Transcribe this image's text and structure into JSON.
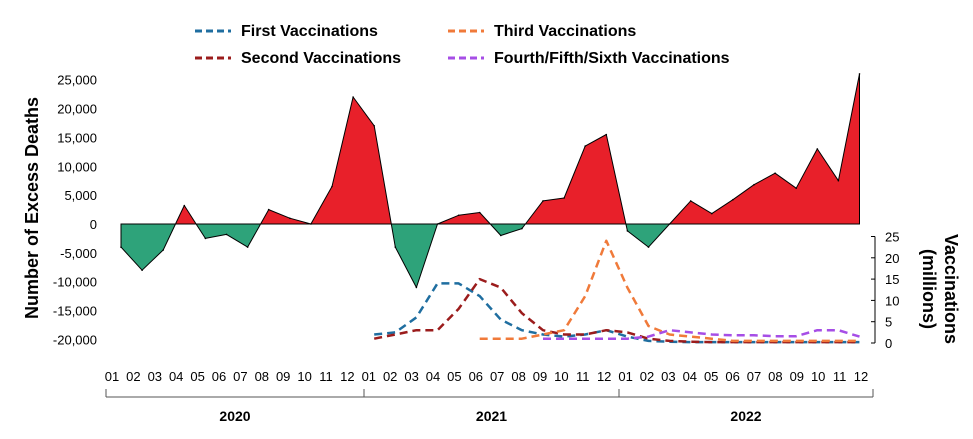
{
  "chart_data": {
    "type": "area",
    "ylabel": "Number of Excess Deaths",
    "ylabel2": "Vaccinations (millions)",
    "ylim": [
      -20000,
      25000
    ],
    "y2lim": [
      0,
      25
    ],
    "yticks": [
      "25,000",
      "20,000",
      "15,000",
      "10,000",
      "5,000",
      "0",
      "-5,000",
      "-10,000",
      "-15,000",
      "-20,000"
    ],
    "y2ticks": [
      "25",
      "20",
      "15",
      "10",
      "5",
      "0"
    ],
    "months": [
      "01",
      "02",
      "03",
      "04",
      "05",
      "06",
      "07",
      "08",
      "09",
      "10",
      "11",
      "12"
    ],
    "years": [
      "2020",
      "2021",
      "2022"
    ],
    "colors": {
      "positive": "#e8202a",
      "negative": "#2ea37a",
      "first": "#1f6ea0",
      "second": "#9b1c1c",
      "third": "#f07a3a",
      "fourth": "#a64ee6"
    },
    "excess_deaths": [
      -4000,
      -8000,
      -4500,
      3200,
      -2500,
      -1800,
      -4000,
      2500,
      1000,
      0,
      6500,
      22000,
      17000,
      -4000,
      -11000,
      0,
      1500,
      2000,
      -2000,
      -800,
      4000,
      4500,
      13500,
      15500,
      -1200,
      -4000,
      0,
      4000,
      1800,
      4200,
      6800,
      8800,
      6200,
      13000,
      7500,
      26000
    ],
    "series": [
      {
        "name": "First Vaccinations",
        "color": "#1f6ea0",
        "start": 12,
        "values": [
          2,
          2.5,
          6,
          14,
          14,
          11,
          5.5,
          3,
          2,
          1.5,
          2,
          3,
          1.5,
          0.5,
          0.3,
          0.2,
          0.2,
          0.2,
          0.2,
          0.2,
          0.2,
          0.2,
          0.2,
          0.2
        ]
      },
      {
        "name": "Second Vaccinations",
        "color": "#9b1c1c",
        "start": 12,
        "values": [
          1,
          2,
          3,
          3,
          8,
          15,
          13,
          7,
          3,
          2,
          2,
          3,
          2.5,
          1,
          0.5,
          0.3,
          0.2,
          0.2,
          0.2,
          0.2,
          0.2,
          0.2,
          0.2,
          0.2
        ]
      },
      {
        "name": "Third Vaccinations",
        "color": "#f07a3a",
        "start": 17,
        "values": [
          1,
          1,
          1,
          2,
          3,
          11,
          24,
          13,
          4,
          2,
          1.5,
          1,
          0.5,
          0.5,
          0.5,
          0.5,
          0.5,
          0.5,
          0.5
        ]
      },
      {
        "name": "Fourth/Fifth/Sixth Vaccinations",
        "color": "#a64ee6",
        "start": 20,
        "values": [
          1,
          1,
          1,
          1,
          1,
          1.5,
          3,
          2.5,
          2,
          1.8,
          1.8,
          1.6,
          1.6,
          3,
          3,
          1.5
        ]
      }
    ],
    "legend": "top"
  }
}
